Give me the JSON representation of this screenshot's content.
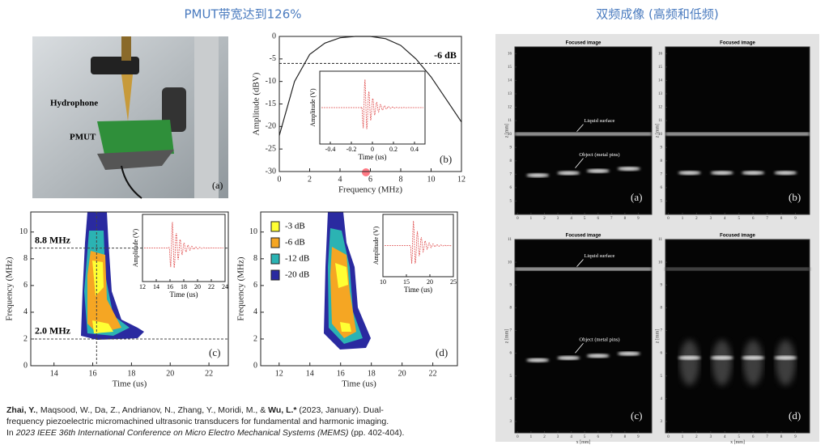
{
  "left_title": "PMUT带宽达到126%",
  "right_title": "双频成像 (高频和低频)",
  "photo": {
    "labels": [
      "Hydrophone",
      "PMUT"
    ],
    "panel_label": "(a)"
  },
  "spectrum": {
    "xlabel": "Frequency (MHz)",
    "ylabel": "Amplitude (dBV)",
    "xlim": [
      0,
      12
    ],
    "ylim": [
      -30,
      0
    ],
    "xticks": [
      0,
      2,
      4,
      6,
      8,
      10,
      12
    ],
    "yticks": [
      -30,
      -25,
      -20,
      -15,
      -10,
      -5,
      0
    ],
    "threshold": {
      "value": -6,
      "label": "-6 dB"
    },
    "panel_label": "(b)",
    "x": [
      0,
      1,
      2,
      3,
      4,
      5,
      6,
      7,
      8,
      9,
      10,
      11,
      12
    ],
    "y": [
      -22,
      -10,
      -4,
      -1.5,
      -0.3,
      0,
      0,
      -0.5,
      -2,
      -5,
      -9,
      -14,
      -19
    ],
    "inset": {
      "xlabel": "Time (us)",
      "ylabel": "Amplitude (V)",
      "xlim": [
        -0.5,
        0.5
      ],
      "xticks": [
        -0.4,
        -0.2,
        0,
        0.2,
        0.4
      ]
    }
  },
  "spectrogram_c": {
    "xlabel": "Time (us)",
    "ylabel": "Frequency (MHz)",
    "xlim": [
      12.8,
      23
    ],
    "ylim": [
      0,
      11.5
    ],
    "xticks": [
      14,
      16,
      18,
      20,
      22
    ],
    "yticks": [
      0,
      2,
      4,
      6,
      8,
      10
    ],
    "levels": [
      {
        "value": 8.8,
        "label": "8.8 MHz"
      },
      {
        "value": 2.0,
        "label": "2.0 MHz"
      }
    ],
    "marker_time": 16.2,
    "panel_label": "(c)",
    "inset": {
      "xlabel": "Time (us)",
      "ylabel": "Amplitude (V)",
      "xlim": [
        12,
        24
      ],
      "xticks": [
        12,
        14,
        16,
        18,
        20,
        22,
        24
      ]
    }
  },
  "spectrogram_d": {
    "xlabel": "Time (us)",
    "ylabel": "Frequency (MHz)",
    "xlim": [
      10.8,
      23.6
    ],
    "ylim": [
      0,
      11.5
    ],
    "xticks": [
      12,
      14,
      16,
      18,
      20,
      22
    ],
    "yticks": [
      0,
      2,
      4,
      6,
      8,
      10
    ],
    "panel_label": "(d)",
    "legend": [
      {
        "name": "-3 dB",
        "color": "#ffff33"
      },
      {
        "name": "-6 dB",
        "color": "#f5a623"
      },
      {
        "name": "-12 dB",
        "color": "#2bb3b3"
      },
      {
        "name": "-20 dB",
        "color": "#2a2aa0"
      }
    ],
    "inset": {
      "xlabel": "Time (us)",
      "ylabel": "Amplitude (V)",
      "xlim": [
        10,
        25
      ],
      "xticks": [
        10,
        15,
        20,
        25
      ]
    }
  },
  "images": [
    {
      "title": "Focused image",
      "panel_label": "(a)",
      "ylabel": "z [mm]",
      "xlim": [
        -0.2,
        10
      ],
      "ylim": [
        4,
        16.5
      ],
      "xticks": [
        0,
        1,
        2,
        3,
        4,
        5,
        6,
        7,
        8,
        9
      ],
      "yticks": [
        5,
        6,
        7,
        8,
        9,
        10,
        11,
        12,
        13,
        14,
        15,
        16
      ],
      "annotations": [
        "Object (metal pins)",
        "Liquid surface"
      ]
    },
    {
      "title": "Focused image",
      "panel_label": "(b)",
      "ylabel": "z [mm]",
      "xlim": [
        -0.2,
        10
      ],
      "ylim": [
        4,
        16.5
      ],
      "xticks": [
        0,
        1,
        2,
        3,
        4,
        5,
        6,
        7,
        8,
        9
      ],
      "yticks": [
        5,
        6,
        7,
        8,
        9,
        10,
        11,
        12,
        13,
        14,
        15,
        16
      ]
    },
    {
      "title": "Focused image",
      "panel_label": "(c)",
      "xlabel": "x [mm]",
      "ylabel": "z [mm]",
      "xlim": [
        -0.2,
        10
      ],
      "ylim": [
        2.5,
        11
      ],
      "xticks": [
        0,
        1,
        2,
        3,
        4,
        5,
        6,
        7,
        8,
        9
      ],
      "yticks": [
        3,
        4,
        5,
        6,
        7,
        8,
        9,
        10,
        11
      ],
      "annotations": [
        "Object (metal pins)",
        "Liquid surface"
      ]
    },
    {
      "title": "Focused image",
      "panel_label": "(d)",
      "xlabel": "x [mm]",
      "ylabel": "z [mm]",
      "xlim": [
        -0.2,
        10
      ],
      "ylim": [
        2.5,
        11
      ],
      "xticks": [
        0,
        1,
        2,
        3,
        4,
        5,
        6,
        7,
        8,
        9
      ],
      "yticks": [
        3,
        4,
        5,
        6,
        7,
        8,
        9,
        10,
        11
      ]
    }
  ],
  "citation": {
    "lines": [
      [
        "Zhai, Y.",
        ", Maqsood, W., Da, Z., Andrianov, N., Zhang, Y., Moridi, M., & ",
        "Wu, L.*",
        " (2023, January). Dual-"
      ],
      [
        "frequency piezoelectric micromachined ultrasonic transducers for fundamental and harmonic imaging."
      ],
      [
        "In ",
        "2023 IEEE 36th International Conference on Micro Electro Mechanical Systems (MEMS)",
        " (pp. 402-404)."
      ]
    ]
  }
}
